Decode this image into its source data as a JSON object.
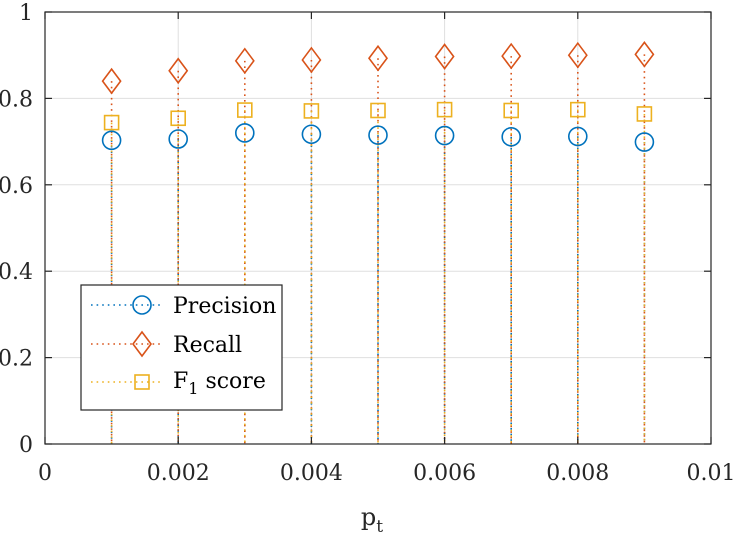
{
  "chart_data": {
    "type": "scatter",
    "title": "",
    "xlabel": "p",
    "xlabel_subscript": "t",
    "ylabel": "",
    "xlim": [
      0,
      0.01
    ],
    "ylim": [
      0,
      1
    ],
    "x_ticks": [
      0,
      0.002,
      0.004,
      0.006,
      0.008,
      0.01
    ],
    "x_tick_labels": [
      "0",
      "0.002",
      "0.004",
      "0.006",
      "0.008",
      "0.01"
    ],
    "y_ticks": [
      0,
      0.2,
      0.4,
      0.6,
      0.8,
      1
    ],
    "y_tick_labels": [
      "0",
      "0.2",
      "0.4",
      "0.6",
      "0.8",
      "1"
    ],
    "grid": true,
    "legend_position": "bottom-left",
    "x": [
      0.001,
      0.002,
      0.003,
      0.004,
      0.005,
      0.006,
      0.007,
      0.008,
      0.009
    ],
    "series": [
      {
        "name": "Precision",
        "marker": "circle",
        "color": "#0072BD",
        "values": [
          0.703,
          0.706,
          0.72,
          0.717,
          0.715,
          0.714,
          0.711,
          0.712,
          0.699
        ]
      },
      {
        "name": "Recall",
        "marker": "diamond",
        "color": "#D95319",
        "values": [
          0.84,
          0.864,
          0.887,
          0.889,
          0.893,
          0.897,
          0.898,
          0.9,
          0.902
        ]
      },
      {
        "name": "F",
        "subscript": "1",
        "suffix": " score",
        "marker": "square",
        "color": "#EDB120",
        "values": [
          0.744,
          0.754,
          0.773,
          0.771,
          0.772,
          0.774,
          0.772,
          0.774,
          0.764
        ]
      }
    ]
  }
}
